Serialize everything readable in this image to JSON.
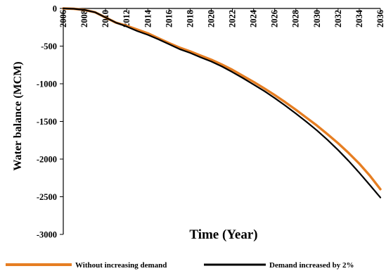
{
  "chart_data": {
    "type": "line",
    "title": "",
    "xlabel": "Time (Year)",
    "ylabel": "Water balance (MCM)",
    "xlim": [
      2006,
      2036
    ],
    "ylim": [
      -3000,
      0
    ],
    "x_ticks": [
      "2006",
      "2008",
      "2010",
      "2012",
      "2014",
      "2016",
      "2018",
      "2020",
      "2022",
      "2024",
      "2026",
      "2028",
      "2030",
      "2032",
      "2034",
      "2036"
    ],
    "y_ticks": [
      "0",
      "-500",
      "-1000",
      "-1500",
      "-2000",
      "-2500",
      "-3000"
    ],
    "grid": false,
    "legend_position": "bottom",
    "x": [
      2006,
      2007,
      2008,
      2009,
      2010,
      2011,
      2012,
      2013,
      2014,
      2015,
      2016,
      2017,
      2018,
      2019,
      2020,
      2021,
      2022,
      2023,
      2024,
      2025,
      2026,
      2027,
      2028,
      2029,
      2030,
      2031,
      2032,
      2033,
      2034,
      2035,
      2036
    ],
    "series": [
      {
        "name": "Without increasing demand",
        "color": "#E67E22",
        "values": [
          0,
          -5,
          -20,
          -50,
          -120,
          -190,
          -230,
          -280,
          -330,
          -395,
          -460,
          -520,
          -570,
          -625,
          -680,
          -745,
          -815,
          -895,
          -975,
          -1060,
          -1150,
          -1245,
          -1345,
          -1450,
          -1555,
          -1670,
          -1790,
          -1920,
          -2060,
          -2220,
          -2400
        ]
      },
      {
        "name": "Demand increased by 2%",
        "color": "#000000",
        "values": [
          0,
          -5,
          -20,
          -50,
          -120,
          -190,
          -240,
          -300,
          -350,
          -410,
          -475,
          -540,
          -590,
          -650,
          -705,
          -770,
          -845,
          -925,
          -1010,
          -1095,
          -1190,
          -1290,
          -1395,
          -1505,
          -1620,
          -1745,
          -1880,
          -2025,
          -2180,
          -2345,
          -2510
        ]
      }
    ]
  }
}
